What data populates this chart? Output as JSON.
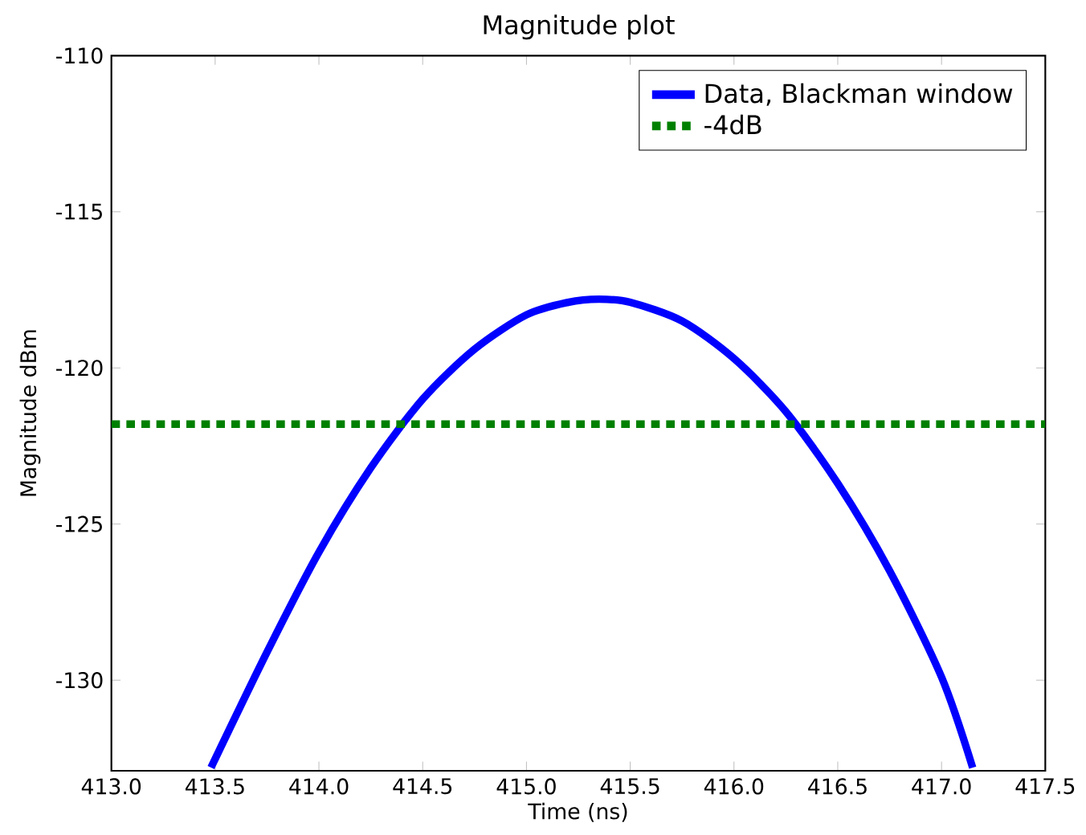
{
  "chart_data": {
    "type": "line",
    "title": "Magnitude plot",
    "xlabel": "Time (ns)",
    "ylabel": "Magnitude dBm",
    "series": [
      {
        "name": "Data, Blackman window",
        "color": "#0000ff",
        "x": [
          413.48,
          413.75,
          414.0,
          414.25,
          414.5,
          414.75,
          415.0,
          415.2,
          415.35,
          415.5,
          415.75,
          416.0,
          416.25,
          416.5,
          416.75,
          417.0,
          417.15
        ],
        "values": [
          -132.8,
          -129.1,
          -125.9,
          -123.2,
          -121.0,
          -119.4,
          -118.3,
          -117.9,
          -117.8,
          -117.9,
          -118.5,
          -119.7,
          -121.4,
          -123.7,
          -126.5,
          -129.9,
          -132.8
        ]
      }
    ],
    "ref_lines": [
      {
        "axis": "y",
        "value": -121.8,
        "label": "-4dB",
        "color": "#008000",
        "line_style": "dashed"
      }
    ],
    "xlim": [
      413.0,
      417.5
    ],
    "ylim": [
      -132.9,
      -110
    ],
    "xticks": [
      {
        "value": 413.0,
        "label": "413.0"
      },
      {
        "value": 413.5,
        "label": "413.5"
      },
      {
        "value": 414.0,
        "label": "414.0"
      },
      {
        "value": 414.5,
        "label": "414.5"
      },
      {
        "value": 415.0,
        "label": "415.0"
      },
      {
        "value": 415.5,
        "label": "415.5"
      },
      {
        "value": 416.0,
        "label": "416.0"
      },
      {
        "value": 416.5,
        "label": "416.5"
      },
      {
        "value": 417.0,
        "label": "417.0"
      },
      {
        "value": 417.5,
        "label": "417.5"
      }
    ],
    "yticks": [
      -130,
      -125,
      -120,
      -115,
      -110
    ],
    "legend": "top right",
    "grid": false
  }
}
